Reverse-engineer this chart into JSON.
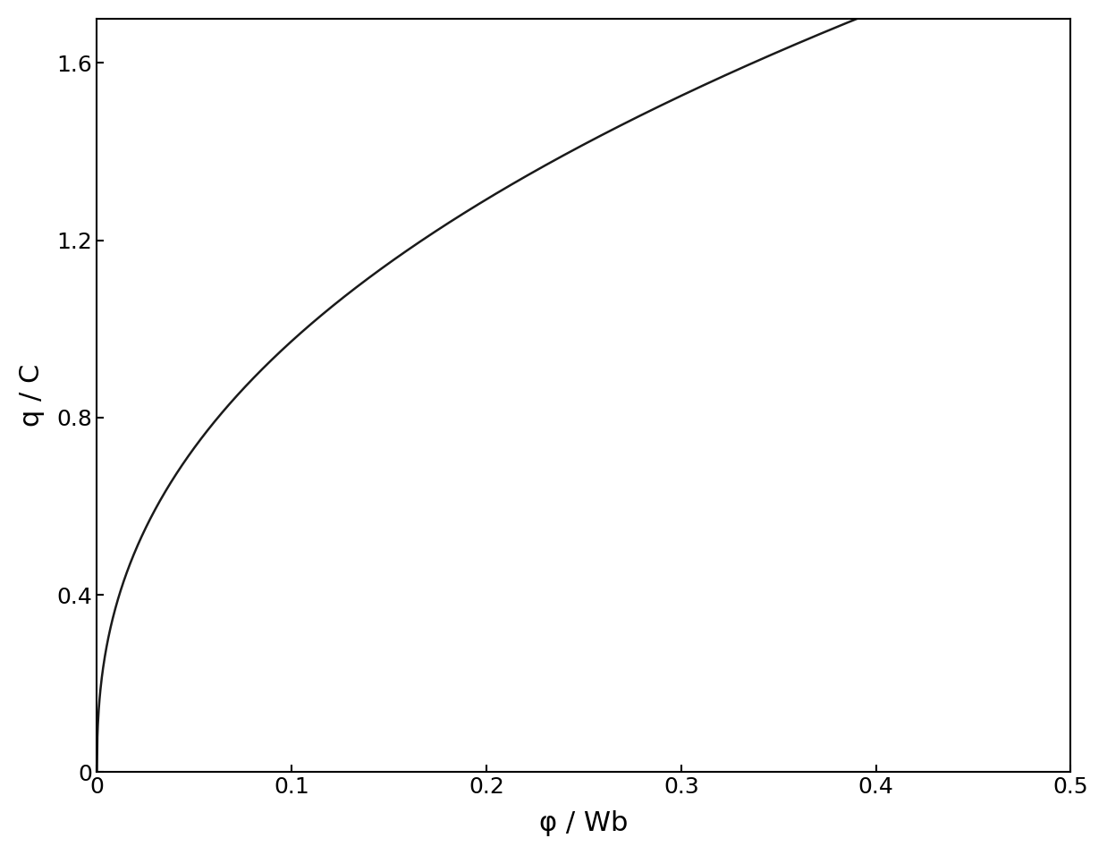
{
  "xlabel": "φ / Wb",
  "ylabel": "q / C",
  "xlim": [
    0,
    0.5
  ],
  "ylim": [
    0,
    1.7
  ],
  "xticks": [
    0,
    0.1,
    0.2,
    0.3,
    0.4,
    0.5
  ],
  "yticks": [
    0,
    0.4,
    0.8,
    1.2,
    1.6
  ],
  "line_color": "#1a1a1a",
  "line_width": 1.8,
  "background_color": "#ffffff",
  "curve_a": 2.5,
  "curve_n": 0.41,
  "phi_max": 0.45,
  "xlabel_fontsize": 22,
  "ylabel_fontsize": 22,
  "tick_fontsize": 18,
  "fig_width": 12.38,
  "fig_height": 9.56,
  "dpi": 100
}
